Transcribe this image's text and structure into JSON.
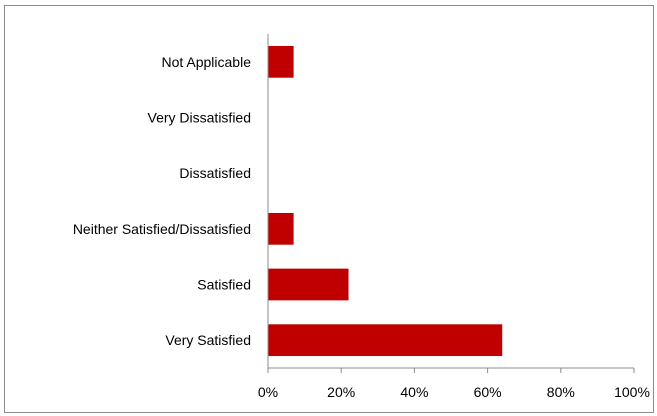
{
  "chart_data": {
    "type": "bar",
    "orientation": "horizontal",
    "title": "",
    "xlabel": "",
    "ylabel": "",
    "categories": [
      "Not Applicable",
      "Very Dissatisfied",
      "Dissatisfied",
      "Neither Satisfied/Dissatisfied",
      "Satisfied",
      "Very Satisfied"
    ],
    "values": [
      7,
      0,
      0,
      7,
      22,
      64
    ],
    "xlim": [
      0,
      100
    ],
    "xticks": [
      0,
      20,
      40,
      60,
      80,
      100
    ],
    "tick_labels": [
      "0%",
      "20%",
      "40%",
      "60%",
      "80%",
      "100%"
    ],
    "value_format": "percent",
    "bar_color": "#C00000",
    "grid": false,
    "legend": "none"
  }
}
